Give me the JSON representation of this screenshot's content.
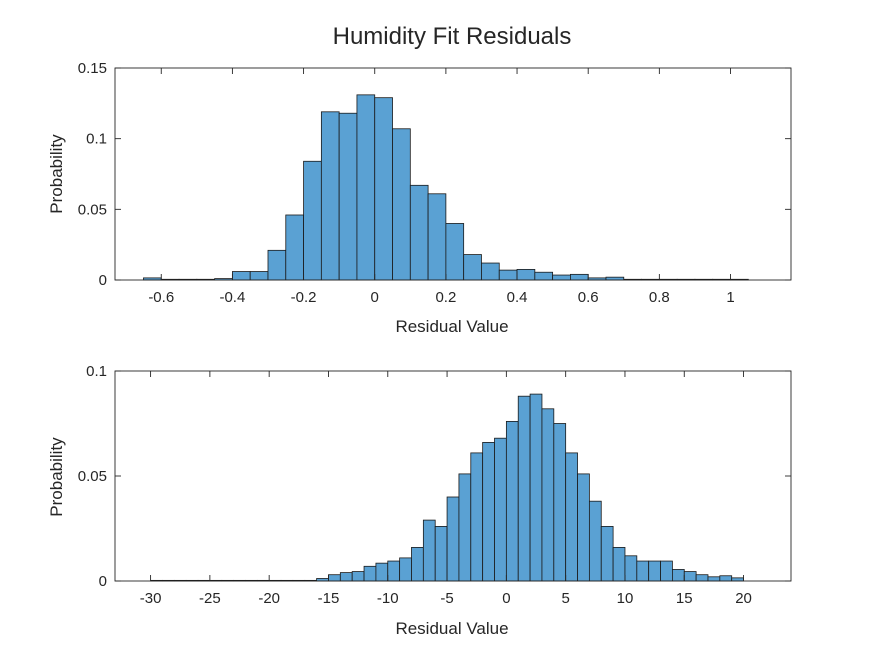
{
  "title": "Humidity Fit Residuals",
  "colors": {
    "bar_fill": "#5aa1d3",
    "bar_edge": "#1a1a1a",
    "axes": "#262626"
  },
  "chart_data": [
    {
      "type": "bar",
      "subtype": "histogram",
      "xlabel": "Residual Value",
      "ylabel": "Probability",
      "xlim": [
        -0.73,
        1.17
      ],
      "ylim": [
        0,
        0.15
      ],
      "xticks": [
        -0.6,
        -0.4,
        -0.2,
        0,
        0.2,
        0.4,
        0.6,
        0.8,
        1
      ],
      "xtick_labels": [
        "-0.6",
        "-0.4",
        "-0.2",
        "0",
        "0.2",
        "0.4",
        "0.6",
        "0.8",
        "1"
      ],
      "yticks": [
        0,
        0.05,
        0.1,
        0.15
      ],
      "ytick_labels": [
        "0",
        "0.05",
        "0.1",
        "0.15"
      ],
      "grid": false,
      "bin_start": -0.65,
      "bin_width": 0.05,
      "values": [
        0.0015,
        0.0005,
        0.0005,
        0.0005,
        0.001,
        0.006,
        0.006,
        0.021,
        0.046,
        0.084,
        0.119,
        0.118,
        0.131,
        0.129,
        0.107,
        0.067,
        0.061,
        0.04,
        0.018,
        0.012,
        0.007,
        0.0075,
        0.0055,
        0.0035,
        0.004,
        0.0015,
        0.002,
        0.0005,
        0.0005,
        0.0005,
        0.0005,
        0.0005,
        0.0005,
        0.0005
      ]
    },
    {
      "type": "bar",
      "subtype": "histogram",
      "xlabel": "Residual Value",
      "ylabel": "Probability",
      "xlim": [
        -33,
        24
      ],
      "ylim": [
        0,
        0.1
      ],
      "xticks": [
        -30,
        -25,
        -20,
        -15,
        -10,
        -5,
        0,
        5,
        10,
        15,
        20
      ],
      "xtick_labels": [
        "-30",
        "-25",
        "-20",
        "-15",
        "-10",
        "-5",
        "0",
        "5",
        "10",
        "15",
        "20"
      ],
      "yticks": [
        0,
        0.05,
        0.1
      ],
      "ytick_labels": [
        "0",
        "0.05",
        "0.1"
      ],
      "grid": false,
      "bin_start": -30,
      "bin_width": 1,
      "values": [
        0.0003,
        0.0003,
        0.0003,
        0.0003,
        0.0003,
        0.0003,
        0.0003,
        0.0003,
        0.0003,
        0.0003,
        0.0003,
        0.0003,
        0.0003,
        0.0003,
        0.0012,
        0.003,
        0.004,
        0.0045,
        0.007,
        0.0085,
        0.0095,
        0.011,
        0.016,
        0.029,
        0.026,
        0.04,
        0.051,
        0.061,
        0.066,
        0.068,
        0.076,
        0.088,
        0.089,
        0.082,
        0.075,
        0.061,
        0.051,
        0.038,
        0.026,
        0.016,
        0.012,
        0.0095,
        0.0095,
        0.0095,
        0.0055,
        0.0045,
        0.003,
        0.002,
        0.0025,
        0.0015
      ]
    }
  ]
}
